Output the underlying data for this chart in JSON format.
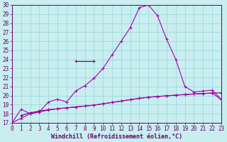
{
  "xlabel": "Windchill (Refroidissement éolien,°C)",
  "bg_color": "#c8eef0",
  "grid_color": "#a0d8dc",
  "line_color_main": "#aa00aa",
  "line_color_dark": "#660066",
  "xlim": [
    0,
    23
  ],
  "ylim": [
    17,
    30
  ],
  "x_ticks": [
    0,
    1,
    2,
    3,
    4,
    5,
    6,
    7,
    8,
    9,
    10,
    11,
    12,
    13,
    14,
    15,
    16,
    17,
    18,
    19,
    20,
    21,
    22,
    23
  ],
  "y_ticks": [
    17,
    18,
    19,
    20,
    21,
    22,
    23,
    24,
    25,
    26,
    27,
    28,
    29,
    30
  ],
  "curve1_x": [
    0,
    1,
    2,
    3,
    4,
    5,
    6,
    7,
    8,
    9,
    10,
    11,
    12,
    13,
    14,
    15,
    16,
    17,
    18,
    19,
    20,
    21,
    22,
    23
  ],
  "curve1_y": [
    17.0,
    18.5,
    18.0,
    18.2,
    19.3,
    19.6,
    19.3,
    20.5,
    21.1,
    21.9,
    23.0,
    24.5,
    26.0,
    27.5,
    29.7,
    30.0,
    28.8,
    26.2,
    24.0,
    21.0,
    20.4,
    20.5,
    20.6,
    19.6
  ],
  "curve2_x": [
    1,
    2,
    3,
    4,
    5,
    6,
    7,
    8,
    9,
    10,
    11,
    12,
    13,
    14,
    15,
    16,
    17,
    18,
    19,
    20,
    21,
    22,
    23
  ],
  "curve2_y": [
    17.8,
    18.1,
    18.3,
    18.45,
    18.55,
    18.65,
    18.75,
    18.85,
    18.95,
    19.1,
    19.25,
    19.4,
    19.55,
    19.7,
    19.82,
    19.9,
    19.98,
    20.05,
    20.12,
    20.18,
    20.23,
    20.28,
    20.3
  ],
  "curve3_x": [
    0,
    1,
    2,
    3,
    4,
    5,
    6,
    7,
    8,
    9,
    10,
    11,
    12,
    13,
    14,
    15,
    16,
    17,
    18,
    19,
    20,
    21,
    22,
    23
  ],
  "curve3_y": [
    17.0,
    17.5,
    18.0,
    18.2,
    18.4,
    18.55,
    18.65,
    18.75,
    18.85,
    18.95,
    19.1,
    19.25,
    19.4,
    19.55,
    19.7,
    19.82,
    19.9,
    19.98,
    20.05,
    20.12,
    20.18,
    20.23,
    20.28,
    19.55
  ],
  "curve4_x": [
    7,
    9
  ],
  "curve4_y": [
    23.8,
    23.8
  ],
  "spine_color": "#660066",
  "tick_fontsize": 5.5,
  "xlabel_fontsize": 6.0
}
